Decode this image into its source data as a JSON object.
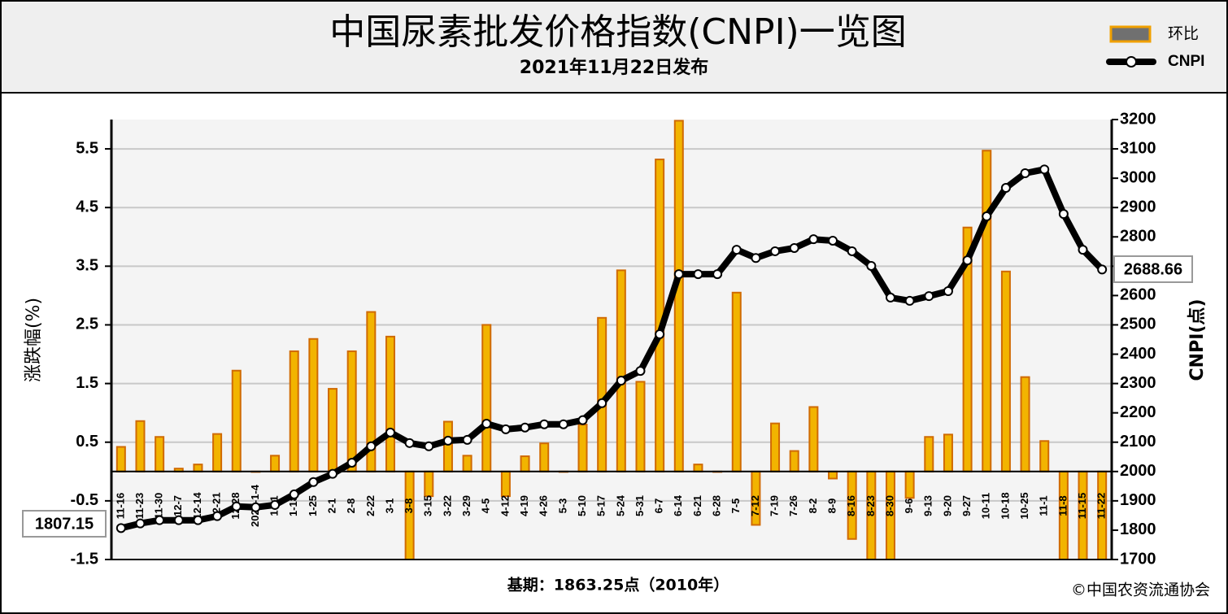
{
  "chart_data": {
    "type": "combo",
    "title": "中国尿素批发价格指数(CNPI)一览图",
    "subtitle": "2021年11月22日发布",
    "ylabel": "涨跌幅(%)",
    "y2label": "CNPI(点)",
    "annotations": [
      "基期：1863.25点（2010年）",
      "©中国农资流通协会"
    ],
    "categories": [
      "11-16",
      "11-23",
      "11-30",
      "12-7",
      "12-14",
      "12-21",
      "12-28",
      "2021-1-4",
      "1-11",
      "1-18",
      "1-25",
      "2-1",
      "2-8",
      "2-22",
      "3-1",
      "3-8",
      "3-15",
      "3-22",
      "3-29",
      "4-5",
      "4-12",
      "4-19",
      "4-26",
      "5-3",
      "5-10",
      "5-17",
      "5-24",
      "5-31",
      "6-7",
      "6-14",
      "6-21",
      "6-28",
      "7-5",
      "7-12",
      "7-19",
      "7-26",
      "8-2",
      "8-9",
      "8-16",
      "8-23",
      "8-30",
      "9-6",
      "9-13",
      "9-20",
      "9-27",
      "10-11",
      "10-18",
      "10-25",
      "11-1",
      "11-8",
      "11-15",
      "11-22"
    ],
    "series": [
      {
        "name": "环比",
        "type": "bar",
        "color": "#f2b400",
        "values": [
          0.42,
          0.86,
          0.59,
          0.05,
          0.12,
          0.64,
          1.72,
          0,
          0.27,
          2.05,
          2.26,
          1.41,
          2.05,
          2.72,
          2.3,
          -1.5,
          -0.42,
          0.85,
          0.27,
          2.5,
          -0.42,
          0.26,
          0.48,
          0,
          0.8,
          2.62,
          3.43,
          1.53,
          5.32,
          5.98,
          0.12,
          0,
          3.05,
          -0.91,
          0.82,
          0.35,
          1.1,
          -0.12,
          -1.15,
          -1.5,
          -1.5,
          -0.45,
          0.59,
          0.63,
          4.16,
          5.47,
          3.41,
          1.61,
          0.52,
          -1.5,
          -1.5,
          -1.5
        ]
      },
      {
        "name": "CNPI",
        "type": "line",
        "axis": "y2",
        "color": "#000000",
        "values": [
          1807.15,
          1823,
          1834,
          1834,
          1834,
          1848,
          1881,
          1878,
          1886,
          1922,
          1964,
          1992,
          2030,
          2086,
          2133,
          2097,
          2086,
          2105,
          2108,
          2163,
          2144,
          2150,
          2161,
          2161,
          2175,
          2233,
          2310,
          2343,
          2468,
          2673,
          2673,
          2673,
          2756,
          2728,
          2751,
          2762,
          2792,
          2787,
          2751,
          2701,
          2593,
          2582,
          2598,
          2615,
          2720,
          2870,
          2967,
          3017,
          3030,
          2878,
          2756,
          2688.66
        ]
      }
    ],
    "ylim": [
      -1.5,
      6
    ],
    "yticks": [
      -1.5,
      -0.5,
      0.5,
      1.5,
      2.5,
      3.5,
      4.5,
      5.5
    ],
    "y2lim": [
      1700,
      3200
    ],
    "y2ticks": [
      1700,
      1800,
      1900,
      2000,
      2100,
      2200,
      2300,
      2400,
      2500,
      2600,
      2700,
      2800,
      2900,
      3000,
      3100,
      3200
    ],
    "grid": true
  }
}
